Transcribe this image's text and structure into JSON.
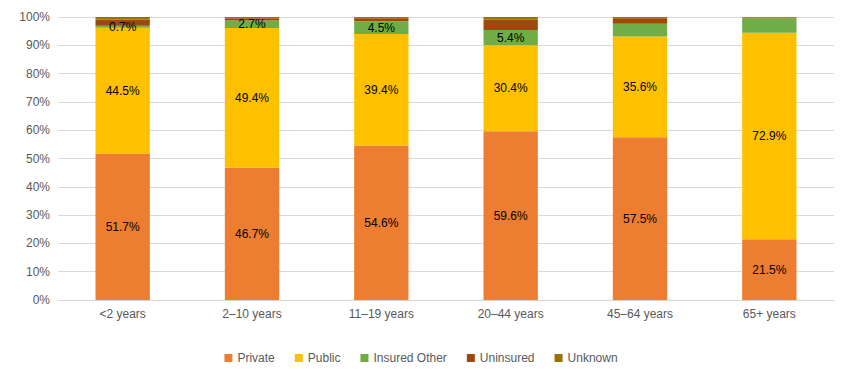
{
  "chart_data": {
    "type": "bar",
    "orientation": "vertical",
    "stacked": true,
    "data_labels": true,
    "grid": true,
    "legend": "bottom",
    "categories": [
      "<2 years",
      "2–10 years",
      "11–19 years",
      "20–44 years",
      "45–64 years",
      "65+ years"
    ],
    "ylim": [
      0,
      100
    ],
    "yticks": [
      {
        "value": 0,
        "label": "0%"
      },
      {
        "value": 10,
        "label": "10%"
      },
      {
        "value": 20,
        "label": "20%"
      },
      {
        "value": 30,
        "label": "30%"
      },
      {
        "value": 40,
        "label": "40%"
      },
      {
        "value": 50,
        "label": "50%"
      },
      {
        "value": 60,
        "label": "60%"
      },
      {
        "value": 70,
        "label": "70%"
      },
      {
        "value": 80,
        "label": "80%"
      },
      {
        "value": 90,
        "label": "90%"
      },
      {
        "value": 100,
        "label": "100%"
      }
    ],
    "series": [
      {
        "name": "Private",
        "color": "#ed7d31",
        "values": [
          51.7,
          46.7,
          54.6,
          59.6,
          57.5,
          21.5
        ],
        "value_labels": [
          "51.7%",
          "46.7%",
          "54.6%",
          "59.6%",
          "57.5%",
          "21.5%"
        ]
      },
      {
        "name": "Public",
        "color": "#ffc000",
        "values": [
          44.5,
          49.4,
          39.4,
          30.4,
          35.6,
          72.9
        ],
        "value_labels": [
          "44.5%",
          "49.4%",
          "39.4%",
          "30.4%",
          "35.6%",
          "72.9%"
        ]
      },
      {
        "name": "Insured Other",
        "color": "#70ad47",
        "values": [
          0.7,
          2.7,
          4.5,
          5.4,
          4.5,
          5.2
        ],
        "value_labels": [
          "0.7%",
          "2.7%",
          "4.5%",
          "5.4%",
          null,
          null
        ]
      },
      {
        "name": "Uninsured",
        "color": "#9e480e",
        "values": [
          2.2,
          0.8,
          1.1,
          3.6,
          2.0,
          0.2
        ],
        "value_labels": [
          null,
          null,
          null,
          null,
          null,
          null
        ]
      },
      {
        "name": "Unknown",
        "color": "#997300",
        "values": [
          0.9,
          0.4,
          0.4,
          1.0,
          0.4,
          0.2
        ],
        "value_labels": [
          null,
          null,
          null,
          null,
          null,
          null
        ]
      }
    ]
  }
}
